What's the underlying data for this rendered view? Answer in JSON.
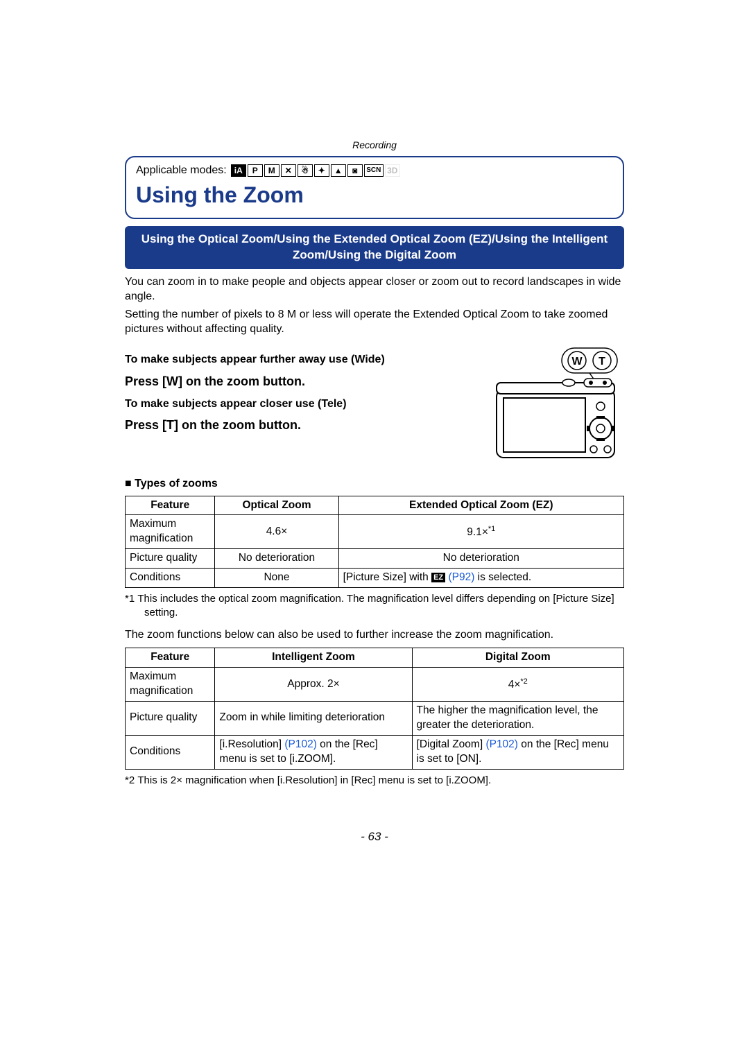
{
  "chapter": "Recording",
  "applicable_label": "Applicable modes:",
  "mode_icons": [
    {
      "label": "iA",
      "dark": true,
      "faded": false
    },
    {
      "label": "P",
      "dark": false,
      "faded": false
    },
    {
      "label": "M",
      "dark": false,
      "faded": false
    },
    {
      "label": "✕",
      "dark": false,
      "faded": false
    },
    {
      "label": "☃",
      "dark": false,
      "faded": false
    },
    {
      "label": "✦",
      "dark": false,
      "faded": false
    },
    {
      "label": "▲",
      "dark": false,
      "faded": false
    },
    {
      "label": "◙",
      "dark": false,
      "faded": false
    },
    {
      "label": "SCN",
      "dark": false,
      "faded": false,
      "scn": true
    },
    {
      "label": "3D",
      "dark": false,
      "faded": true
    }
  ],
  "title": "Using the Zoom",
  "subtitle": "Using the Optical Zoom/Using the Extended Optical Zoom (EZ)/Using the Intelligent Zoom/Using the Digital Zoom",
  "intro1": "You can zoom in to make people and objects appear closer or zoom out to record landscapes in wide angle.",
  "intro2": "Setting the number of pixels to 8 M or less will operate the Extended Optical Zoom to take zoomed pictures without affecting quality.",
  "wide_heading": "To make subjects appear further away use (Wide)",
  "wide_action": "Press [W] on the zoom button.",
  "tele_heading": "To make subjects appear closer use (Tele)",
  "tele_action": "Press [T] on the zoom button.",
  "wt_w": "W",
  "wt_t": "T",
  "types_heading": "Types of zooms",
  "table1": {
    "headers": [
      "Feature",
      "Optical Zoom",
      "Extended Optical Zoom (EZ)"
    ],
    "rows": [
      {
        "feature": "Maximum magnification",
        "col2": "4.6×",
        "col3": "9.1×",
        "col3_sup": "*1",
        "col2_center": true,
        "col3_center": true
      },
      {
        "feature": "Picture quality",
        "col2": "No deterioration",
        "col3": "No deterioration",
        "col2_center": true,
        "col3_center": true
      },
      {
        "feature": "Conditions",
        "col2": "None",
        "col3_prefix": "[Picture Size] with ",
        "col3_badge": "EZ",
        "col3_link": "(P92)",
        "col3_suffix": " is selected.",
        "col2_center": true
      }
    ]
  },
  "footnote1_prefix": "*1 ",
  "footnote1": "This includes the optical zoom magnification. The magnification level differs depending on [Picture Size] setting.",
  "between_tables": "The zoom functions below can also be used to further increase the zoom magnification.",
  "table2": {
    "headers": [
      "Feature",
      "Intelligent Zoom",
      "Digital Zoom"
    ],
    "rows": [
      {
        "feature": "Maximum magnification",
        "col2": "Approx. 2×",
        "col3": "4×",
        "col3_sup": "*2",
        "col2_center": true,
        "col3_center": true
      },
      {
        "feature": "Picture quality",
        "col2": "Zoom in while limiting deterioration",
        "col3": "The higher the magnification level, the greater the deterioration."
      },
      {
        "feature": "Conditions",
        "col2_prefix": "[i.Resolution] ",
        "col2_link": "(P102)",
        "col2_suffix": " on the [Rec] menu is set to [i.ZOOM].",
        "col3_prefix": "[Digital Zoom] ",
        "col3_link": "(P102)",
        "col3_suffix": " on the [Rec] menu is set to [ON]."
      }
    ]
  },
  "footnote2_prefix": "*2 ",
  "footnote2": "This is 2× magnification when [i.Resolution] in [Rec] menu is set to [i.ZOOM].",
  "page_number": "- 63 -",
  "colors": {
    "brand_blue": "#1a3a8a",
    "link_blue": "#1a5ad6"
  }
}
